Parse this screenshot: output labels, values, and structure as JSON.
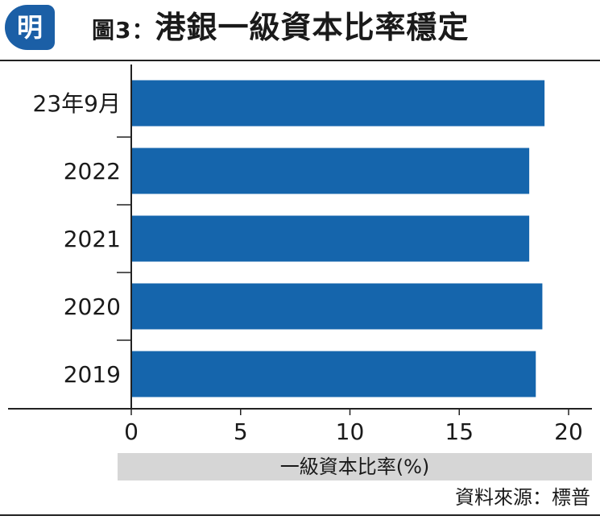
{
  "header": {
    "logo_text": "明",
    "title_label": "圖3：",
    "title_text": "港銀一級資本比率穩定"
  },
  "chart_data": {
    "type": "bar",
    "orientation": "horizontal",
    "categories": [
      "23年9月",
      "2022",
      "2021",
      "2020",
      "2019"
    ],
    "values": [
      18.9,
      18.2,
      18.2,
      18.8,
      18.5
    ],
    "xlabel": "一級資本比率(%)",
    "ylabel": "",
    "xlim": [
      0,
      21
    ],
    "xticks": [
      0,
      5,
      10,
      15,
      20
    ],
    "grid": false,
    "bar_color": "#1565ac"
  },
  "source": "資料來源：標普"
}
